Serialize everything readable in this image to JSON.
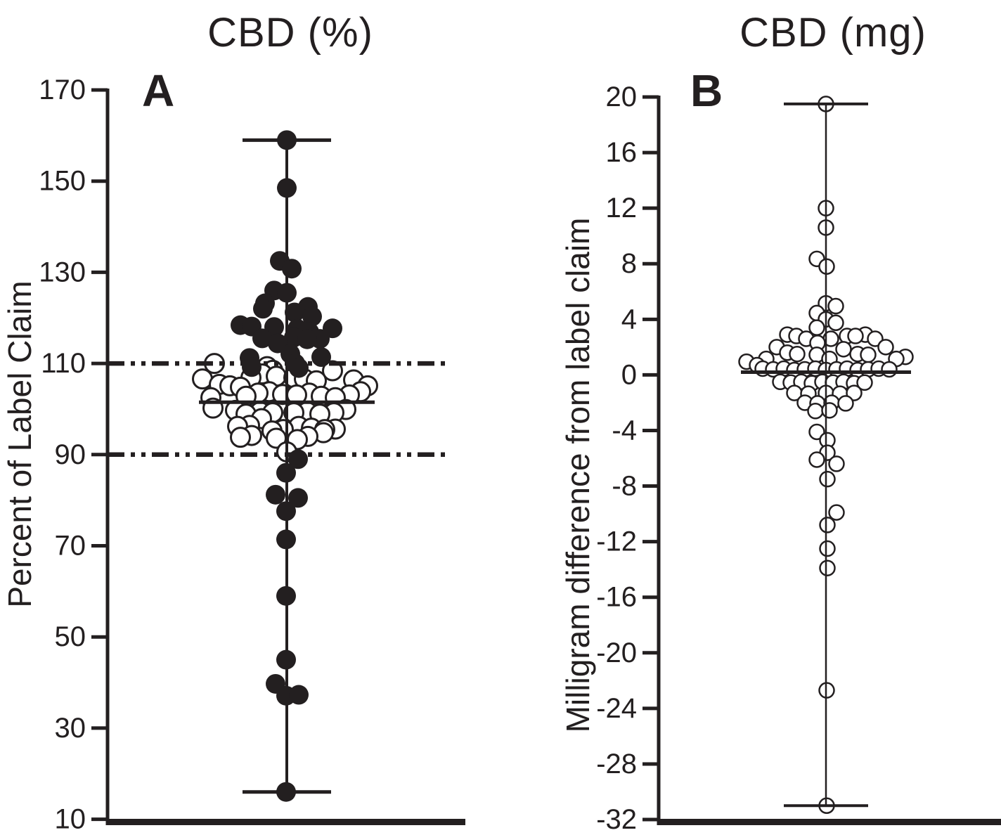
{
  "figure": {
    "background": "#ffffff",
    "ink_color": "#231f20"
  },
  "chart_data": [
    {
      "id": "A",
      "type": "scatter",
      "subtype": "column-scatter-with-range-whiskers",
      "title": "CBD (%)",
      "panel_label": "A",
      "xlabel": "",
      "ylabel": "Percent of Label Claim",
      "ylim": [
        10,
        170
      ],
      "yticks": [
        170,
        150,
        130,
        110,
        90,
        70,
        50,
        30,
        10
      ],
      "grid": false,
      "legend": "none",
      "reference_lines": [
        {
          "y": 110,
          "style": "dash-dot-dot"
        },
        {
          "y": 90,
          "style": "dash-dot-dot"
        }
      ],
      "median": 101.5,
      "whisker_max": 159,
      "whisker_min": 16,
      "series": [
        {
          "name": "outside-label-claim-filled",
          "marker": "filled-circle",
          "points": [
            [
              159,
              0
            ],
            [
              148.5,
              0
            ],
            [
              132.5,
              -10
            ],
            [
              130.8,
              7
            ],
            [
              126,
              -18
            ],
            [
              125.5,
              0
            ],
            [
              123.2,
              -31
            ],
            [
              122.4,
              30
            ],
            [
              122,
              -34
            ],
            [
              121.2,
              11
            ],
            [
              120.3,
              36
            ],
            [
              118.4,
              -66
            ],
            [
              118.1,
              -50
            ],
            [
              118,
              -18
            ],
            [
              117.7,
              65
            ],
            [
              117.6,
              15
            ],
            [
              116.9,
              32
            ],
            [
              115.7,
              10
            ],
            [
              115.5,
              -35
            ],
            [
              115.4,
              47
            ],
            [
              115.3,
              29
            ],
            [
              114.4,
              -13
            ],
            [
              112.1,
              5
            ],
            [
              111.4,
              49
            ],
            [
              111.2,
              -53
            ],
            [
              110,
              12
            ],
            [
              109.2,
              -50
            ],
            [
              109,
              17
            ],
            [
              89,
              16
            ],
            [
              86,
              -1
            ],
            [
              81.2,
              -16
            ],
            [
              80.5,
              16
            ],
            [
              77.6,
              -1
            ],
            [
              71.4,
              -1
            ],
            [
              59,
              -1
            ],
            [
              45,
              -1
            ],
            [
              39.7,
              -16
            ],
            [
              37.1,
              -1
            ],
            [
              37.3,
              17
            ],
            [
              16,
              -1
            ]
          ]
        },
        {
          "name": "within-label-claim-open",
          "marker": "open-circle",
          "points": [
            [
              110,
              -103
            ],
            [
              109.3,
              -28
            ],
            [
              108.5,
              -20
            ],
            [
              108.4,
              65
            ],
            [
              107.7,
              -35
            ],
            [
              107.2,
              -15
            ],
            [
              106.9,
              -51
            ],
            [
              106.9,
              10
            ],
            [
              106.6,
              -120
            ],
            [
              106.6,
              25
            ],
            [
              106.4,
              95
            ],
            [
              106.2,
              42
            ],
            [
              105.4,
              -96
            ],
            [
              105.1,
              -81
            ],
            [
              105.1,
              115
            ],
            [
              104.8,
              -66
            ],
            [
              103.8,
              -25
            ],
            [
              103.8,
              105
            ],
            [
              103.5,
              -41
            ],
            [
              103.5,
              32
            ],
            [
              103.2,
              -6
            ],
            [
              103.1,
              14
            ],
            [
              103.1,
              89
            ],
            [
              102.8,
              -58
            ],
            [
              102.8,
              49
            ],
            [
              102.5,
              -108
            ],
            [
              102.5,
              69
            ],
            [
              100.2,
              -105
            ],
            [
              99.9,
              84
            ],
            [
              99.7,
              -73
            ],
            [
              99.4,
              -38
            ],
            [
              99.4,
              29
            ],
            [
              99.2,
              -20
            ],
            [
              99.2,
              10
            ],
            [
              99.2,
              67
            ],
            [
              98.9,
              -58
            ],
            [
              98.9,
              47
            ],
            [
              97.9,
              -36
            ],
            [
              96.4,
              -53
            ],
            [
              96.2,
              -70
            ],
            [
              96.2,
              17
            ],
            [
              95.8,
              35
            ],
            [
              95.6,
              69
            ],
            [
              95.5,
              -5
            ],
            [
              95.5,
              54
            ],
            [
              95.2,
              -21
            ],
            [
              94.8,
              52
            ],
            [
              94.2,
              -50
            ],
            [
              94,
              30
            ],
            [
              93.8,
              -66
            ],
            [
              93.6,
              -15
            ],
            [
              93.3,
              15
            ],
            [
              90.6,
              0
            ]
          ]
        }
      ]
    },
    {
      "id": "B",
      "type": "scatter",
      "subtype": "column-scatter-with-range-whiskers",
      "title": "CBD (mg)",
      "panel_label": "B",
      "xlabel": "",
      "ylabel": "Milligram difference from label claim",
      "ylim": [
        -32,
        20
      ],
      "yticks": [
        20,
        16,
        12,
        8,
        4,
        0,
        -4,
        -8,
        -12,
        -16,
        -20,
        -24,
        -28,
        -32
      ],
      "grid": false,
      "legend": "none",
      "reference_lines": [],
      "median": 0.2,
      "whisker_max": 19.5,
      "whisker_min": -31,
      "series": [
        {
          "name": "milligram-difference-open",
          "marker": "open-circle",
          "points": [
            [
              19.5,
              0
            ],
            [
              12,
              0
            ],
            [
              10.6,
              0
            ],
            [
              8.35,
              -13
            ],
            [
              7.8,
              1
            ],
            [
              5.15,
              0
            ],
            [
              4.95,
              14
            ],
            [
              4.45,
              -13
            ],
            [
              4,
              0
            ],
            [
              3.75,
              14
            ],
            [
              3.4,
              -13
            ],
            [
              2.9,
              -55
            ],
            [
              2.9,
              56
            ],
            [
              2.8,
              -42
            ],
            [
              2.8,
              30
            ],
            [
              2.8,
              42
            ],
            [
              2.6,
              -28
            ],
            [
              2.6,
              7
            ],
            [
              2.6,
              70
            ],
            [
              2.3,
              -12
            ],
            [
              2,
              -70
            ],
            [
              2,
              85
            ],
            [
              1.85,
              25
            ],
            [
              1.6,
              -55
            ],
            [
              1.5,
              -41
            ],
            [
              1.5,
              45
            ],
            [
              1.45,
              -13
            ],
            [
              1.45,
              60
            ],
            [
              1.3,
              113
            ],
            [
              1.15,
              -85
            ],
            [
              1.15,
              5
            ],
            [
              1.15,
              100
            ],
            [
              0.95,
              -113
            ],
            [
              0.7,
              -98
            ],
            [
              0.45,
              -90
            ],
            [
              0.4,
              -75
            ],
            [
              0.45,
              -60
            ],
            [
              0.35,
              -45
            ],
            [
              0.4,
              -30
            ],
            [
              0.45,
              -15
            ],
            [
              0.35,
              0
            ],
            [
              0.4,
              15
            ],
            [
              0.45,
              30
            ],
            [
              0.35,
              45
            ],
            [
              0.4,
              60
            ],
            [
              0.45,
              75
            ],
            [
              0.4,
              90
            ],
            [
              -0.5,
              -65
            ],
            [
              -0.55,
              -50
            ],
            [
              -0.5,
              -35
            ],
            [
              -0.6,
              -20
            ],
            [
              -0.5,
              -5
            ],
            [
              -0.55,
              10
            ],
            [
              -0.5,
              25
            ],
            [
              -0.6,
              40
            ],
            [
              -0.55,
              55
            ],
            [
              -1.3,
              -45
            ],
            [
              -1.35,
              -25
            ],
            [
              -1.3,
              0
            ],
            [
              -1.35,
              20
            ],
            [
              -1.3,
              40
            ],
            [
              -2,
              -30
            ],
            [
              -2.05,
              -12
            ],
            [
              -2,
              8
            ],
            [
              -2.05,
              28
            ],
            [
              -2.6,
              -15
            ],
            [
              -2.55,
              5
            ],
            [
              -4.1,
              -13
            ],
            [
              -4.7,
              2
            ],
            [
              -5.6,
              2
            ],
            [
              -6.1,
              -13
            ],
            [
              -6.4,
              15
            ],
            [
              -7.5,
              2
            ],
            [
              -9.9,
              15
            ],
            [
              -10.8,
              2
            ],
            [
              -12.5,
              2
            ],
            [
              -13.9,
              2
            ],
            [
              -22.7,
              1
            ],
            [
              -31,
              1
            ]
          ]
        }
      ]
    }
  ]
}
